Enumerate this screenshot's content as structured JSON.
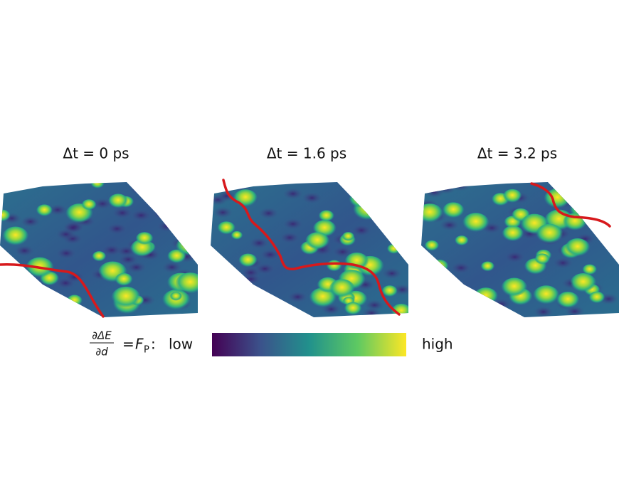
{
  "panels": [
    {
      "title": "Δt = 0 ps"
    },
    {
      "title": "Δt = 1.6 ps"
    },
    {
      "title": "Δt = 3.2 ps"
    }
  ],
  "colorbar": {
    "numerator": "∂ΔE",
    "denominator": "∂d",
    "equals": "=",
    "symbol": "F",
    "subscript": "P",
    "colon": ":",
    "low": "low",
    "high": "high"
  }
}
